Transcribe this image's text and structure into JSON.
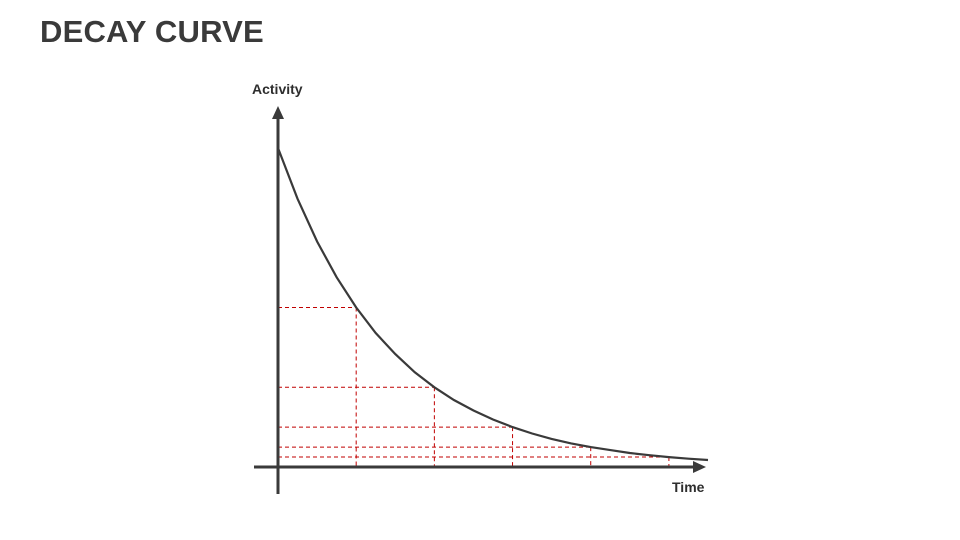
{
  "page": {
    "title": "DECAY CURVE"
  },
  "chart_data": {
    "type": "line",
    "title": "DECAY CURVE",
    "xlabel": "Time",
    "ylabel": "Activity",
    "x_ticks_shown": false,
    "y_ticks_shown": false,
    "grid": false,
    "series": [
      {
        "x": [
          0,
          0.25,
          0.5,
          0.75,
          1,
          1.25,
          1.5,
          1.75,
          2,
          2.25,
          2.5,
          2.75,
          3,
          3.25,
          3.5,
          3.75,
          4,
          4.25,
          4.5,
          4.75,
          5,
          5.25,
          5.5
        ],
        "values": [
          1,
          0.841,
          0.707,
          0.595,
          0.5,
          0.42,
          0.354,
          0.297,
          0.25,
          0.21,
          0.177,
          0.149,
          0.125,
          0.105,
          0.088,
          0.074,
          0.0625,
          0.053,
          0.044,
          0.037,
          0.031,
          0.026,
          0.022
        ]
      }
    ],
    "markers": [
      {
        "x": 1,
        "y": 0.5
      },
      {
        "x": 2,
        "y": 0.25
      },
      {
        "x": 3,
        "y": 0.125
      },
      {
        "x": 4,
        "y": 0.0625
      },
      {
        "x": 5,
        "y": 0.03125
      }
    ],
    "xlim": [
      0,
      5.5
    ],
    "ylim": [
      0,
      1
    ],
    "colors": {
      "axis": "#3a3a3a",
      "curve": "#3a3a3a",
      "guides": "#c00000"
    }
  }
}
